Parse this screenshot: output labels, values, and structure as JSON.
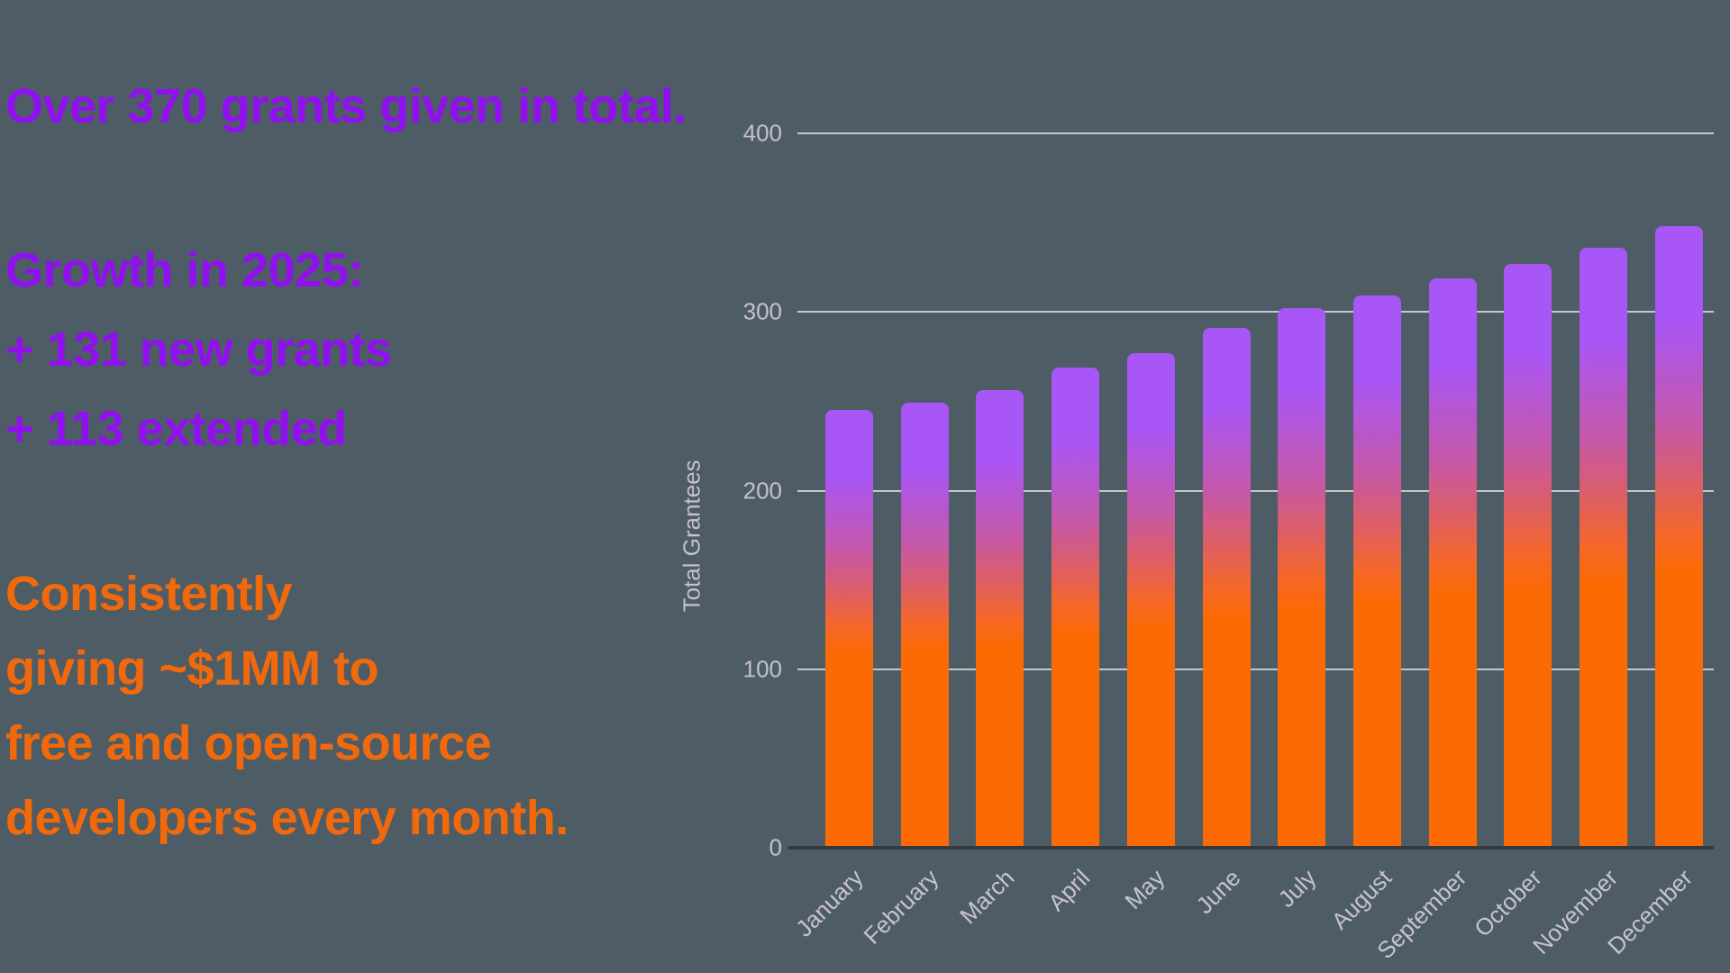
{
  "colors": {
    "background": "#4E5D65",
    "purple_text": "#9110F0",
    "orange_text": "#F2690C",
    "bar_top": "#A956F7",
    "bar_bottom": "#FC6A04",
    "gridline": "#C8C4CD",
    "axis_text": "#C5C0CC",
    "baseline": "#35383C"
  },
  "stats_panel": {
    "headline": "Over 370 grants given in total.",
    "growth_title": "Growth in 2025:",
    "growth_line_1": "+ 131 new grants",
    "growth_line_2": "+ 113 extended",
    "giving_line_1": "Consistently",
    "giving_line_2": "giving ~$1MM to",
    "giving_line_3": "free and open-source",
    "giving_line_4": "developers every month."
  },
  "chart_data": {
    "type": "bar",
    "categories": [
      "January",
      "February",
      "March",
      "April",
      "May",
      "June",
      "July",
      "August",
      "September",
      "October",
      "November",
      "December"
    ],
    "values": [
      245,
      249,
      256,
      269,
      277,
      291,
      302,
      309,
      319,
      327,
      336,
      348
    ],
    "title": "",
    "xlabel": "",
    "ylabel": "Total Grantees",
    "ylim": [
      0,
      400
    ],
    "yticks": [
      0,
      100,
      200,
      300,
      400
    ],
    "grid": true,
    "legend": false,
    "bar_gradient_top_to_bottom": [
      "#A956F7",
      "#FC6A04"
    ]
  }
}
